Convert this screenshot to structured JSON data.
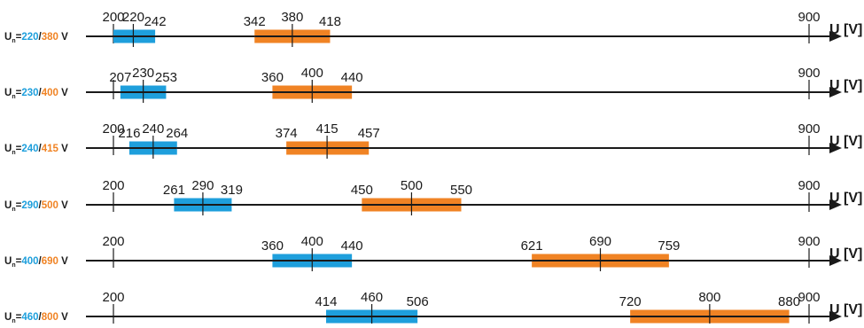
{
  "colors": {
    "line": "#1a1a1a",
    "phase_band": "#1e9fdc",
    "line_band": "#f08324"
  },
  "axis": {
    "label": "U [V]",
    "start_tick": "200",
    "end_tick": "900",
    "range": [
      200,
      900
    ]
  },
  "rows": [
    {
      "prefix": "U",
      "subscript": "n",
      "eq": "=",
      "phase": "220",
      "sep": "/",
      "line": "380",
      "unit": " V",
      "show_start_tick": true,
      "phase_band": {
        "low": 200,
        "nominal": 220,
        "high": 242,
        "low_label": "200",
        "nominal_label": "220",
        "high_label": "242"
      },
      "line_band": {
        "low": 342,
        "nominal": 380,
        "high": 418,
        "low_label": "342",
        "nominal_label": "380",
        "high_label": "418"
      }
    },
    {
      "prefix": "U",
      "subscript": "n",
      "eq": "=",
      "phase": "230",
      "sep": "/",
      "line": "400",
      "unit": " V",
      "show_start_tick": false,
      "phase_band": {
        "low": 207,
        "nominal": 230,
        "high": 253,
        "low_label": "207",
        "nominal_label": "230",
        "high_label": "253"
      },
      "line_band": {
        "low": 360,
        "nominal": 400,
        "high": 440,
        "low_label": "360",
        "nominal_label": "400",
        "high_label": "440"
      }
    },
    {
      "prefix": "U",
      "subscript": "n",
      "eq": "=",
      "phase": "240",
      "sep": "/",
      "line": "415",
      "unit": " V",
      "show_start_tick": true,
      "phase_band": {
        "low": 216,
        "nominal": 240,
        "high": 264,
        "low_label": "216",
        "nominal_label": "240",
        "high_label": "264"
      },
      "line_band": {
        "low": 374,
        "nominal": 415,
        "high": 457,
        "low_label": "374",
        "nominal_label": "415",
        "high_label": "457"
      }
    },
    {
      "prefix": "U",
      "subscript": "n",
      "eq": "=",
      "phase": "290",
      "sep": "/",
      "line": "500",
      "unit": " V",
      "show_start_tick": true,
      "phase_band": {
        "low": 261,
        "nominal": 290,
        "high": 319,
        "low_label": "261",
        "nominal_label": "290",
        "high_label": "319"
      },
      "line_band": {
        "low": 450,
        "nominal": 500,
        "high": 550,
        "low_label": "450",
        "nominal_label": "500",
        "high_label": "550"
      }
    },
    {
      "prefix": "U",
      "subscript": "n",
      "eq": "=",
      "phase": "400",
      "sep": "/",
      "line": "690",
      "unit": " V",
      "show_start_tick": true,
      "phase_band": {
        "low": 360,
        "nominal": 400,
        "high": 440,
        "low_label": "360",
        "nominal_label": "400",
        "high_label": "440"
      },
      "line_band": {
        "low": 621,
        "nominal": 690,
        "high": 759,
        "low_label": "621",
        "nominal_label": "690",
        "high_label": "759"
      }
    },
    {
      "prefix": "U",
      "subscript": "n",
      "eq": "=",
      "phase": "460",
      "sep": "/",
      "line": "800",
      "unit": " V",
      "show_start_tick": true,
      "phase_band": {
        "low": 414,
        "nominal": 460,
        "high": 506,
        "low_label": "414",
        "nominal_label": "460",
        "high_label": "506"
      },
      "line_band": {
        "low": 720,
        "nominal": 800,
        "high": 880,
        "low_label": "720",
        "nominal_label": "800",
        "high_label": "880"
      }
    }
  ]
}
